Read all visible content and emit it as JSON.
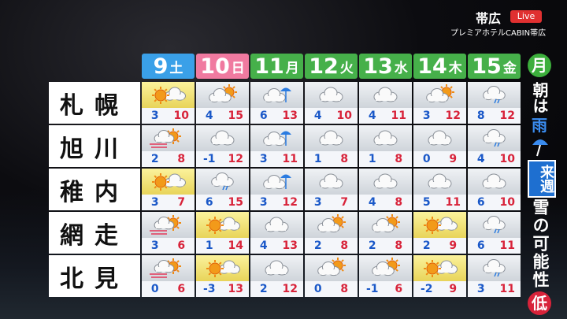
{
  "header": {
    "location": "帯広",
    "live": "Live",
    "venue": "プレミアホテルCABIN帯広"
  },
  "days": [
    {
      "date": "9",
      "weekday": "土"
    },
    {
      "date": "10",
      "weekday": "日"
    },
    {
      "date": "11",
      "weekday": "月"
    },
    {
      "date": "12",
      "weekday": "火"
    },
    {
      "date": "13",
      "weekday": "水"
    },
    {
      "date": "14",
      "weekday": "木"
    },
    {
      "date": "15",
      "weekday": "金"
    }
  ],
  "rows": [
    {
      "city": "札幌",
      "temps": [
        {
          "min": 3,
          "max": 10
        },
        {
          "min": 4,
          "max": 15
        },
        {
          "min": 6,
          "max": 13
        },
        {
          "min": 4,
          "max": 10
        },
        {
          "min": 4,
          "max": 11
        },
        {
          "min": 3,
          "max": 12
        },
        {
          "min": 8,
          "max": 12
        }
      ]
    },
    {
      "city": "旭川",
      "temps": [
        {
          "min": 2,
          "max": 8
        },
        {
          "min": -1,
          "max": 12
        },
        {
          "min": 3,
          "max": 11
        },
        {
          "min": 1,
          "max": 8
        },
        {
          "min": 1,
          "max": 8
        },
        {
          "min": 0,
          "max": 9
        },
        {
          "min": 4,
          "max": 10
        }
      ]
    },
    {
      "city": "稚内",
      "temps": [
        {
          "min": 3,
          "max": 7
        },
        {
          "min": 6,
          "max": 15
        },
        {
          "min": 3,
          "max": 12
        },
        {
          "min": 3,
          "max": 7
        },
        {
          "min": 4,
          "max": 8
        },
        {
          "min": 5,
          "max": 11
        },
        {
          "min": 6,
          "max": 10
        }
      ]
    },
    {
      "city": "網走",
      "temps": [
        {
          "min": 3,
          "max": 6
        },
        {
          "min": 1,
          "max": 14
        },
        {
          "min": 4,
          "max": 13
        },
        {
          "min": 2,
          "max": 8
        },
        {
          "min": 2,
          "max": 8
        },
        {
          "min": 2,
          "max": 9
        },
        {
          "min": 6,
          "max": 11
        }
      ]
    },
    {
      "city": "北見",
      "temps": [
        {
          "min": 0,
          "max": 6
        },
        {
          "min": -3,
          "max": 13
        },
        {
          "min": 2,
          "max": 12
        },
        {
          "min": 0,
          "max": 8
        },
        {
          "min": -1,
          "max": 6
        },
        {
          "min": -2,
          "max": 9
        },
        {
          "min": 3,
          "max": 11
        }
      ]
    }
  ],
  "side": {
    "day": "月",
    "morning": "朝は",
    "rain": "雨",
    "next_week": "来週",
    "snow": "雪の可能性",
    "level": "低"
  }
}
